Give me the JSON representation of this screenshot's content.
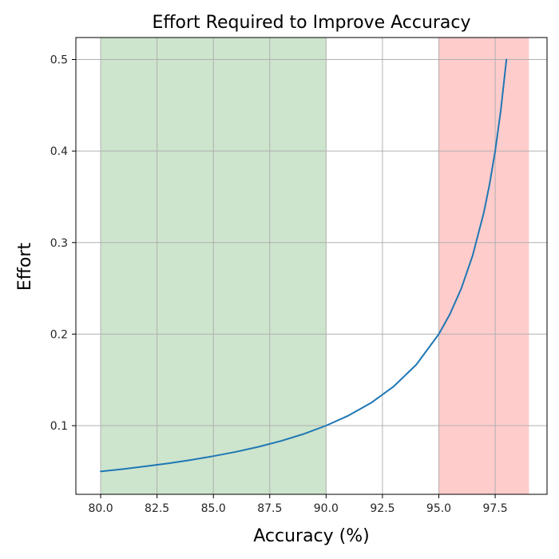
{
  "chart_data": {
    "type": "line",
    "title": "Effort Required to Improve Accuracy",
    "xlabel": "Accuracy (%)",
    "ylabel": "Effort",
    "xlim": [
      78.9,
      99.8
    ],
    "ylim": [
      0.025,
      0.524
    ],
    "x_ticks": [
      "80.0",
      "82.5",
      "85.0",
      "87.5",
      "90.0",
      "92.5",
      "95.0",
      "97.5"
    ],
    "y_ticks": [
      "0.1",
      "0.2",
      "0.3",
      "0.4",
      "0.5"
    ],
    "grid": true,
    "shaded_regions": [
      {
        "x_start": 80,
        "x_end": 90,
        "color": "#cde4cd"
      },
      {
        "x_start": 95,
        "x_end": 99,
        "color": "#ffcccc"
      }
    ],
    "series": [
      {
        "color": "#1f77b4",
        "x": [
          80,
          81,
          82,
          83,
          84,
          85,
          86,
          87,
          88,
          89,
          90,
          91,
          92,
          93,
          94,
          95,
          95.5,
          96,
          96.5,
          97,
          97.25,
          97.5,
          97.75,
          98
        ],
        "y": [
          0.05,
          0.0526,
          0.0556,
          0.0588,
          0.0625,
          0.0667,
          0.0714,
          0.0769,
          0.0833,
          0.0909,
          0.1,
          0.1111,
          0.125,
          0.1429,
          0.1667,
          0.2,
          0.2222,
          0.25,
          0.2857,
          0.3333,
          0.3636,
          0.4,
          0.4444,
          0.5
        ]
      }
    ]
  }
}
